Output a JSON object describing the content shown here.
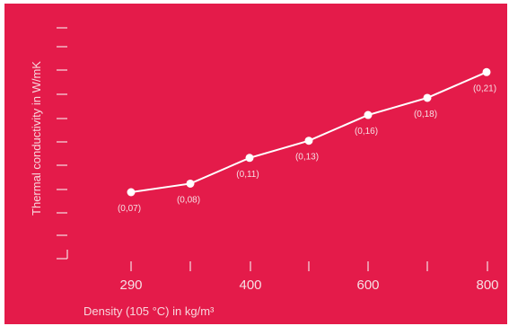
{
  "chart_data": {
    "type": "line",
    "x_tick_labels": [
      "290",
      "400",
      "600",
      "800"
    ],
    "xlabel": "Density (105 °C) in kg/m³",
    "ylabel": "Thermal conductivity in W/mK",
    "series": [
      {
        "points": [
          {
            "label": "(0,07)",
            "y": 0.07
          },
          {
            "label": "(0,08)",
            "y": 0.08
          },
          {
            "label": "(0,11)",
            "y": 0.11
          },
          {
            "label": "(0,13)",
            "y": 0.13
          },
          {
            "label": "(0,16)",
            "y": 0.16
          },
          {
            "label": "(0,18)",
            "y": 0.18
          },
          {
            "label": "(0,21)",
            "y": 0.21
          }
        ]
      }
    ],
    "grid": false,
    "colors": {
      "background": "#e41b4a",
      "line": "#ffffff",
      "text": "#f6dfe4"
    }
  }
}
